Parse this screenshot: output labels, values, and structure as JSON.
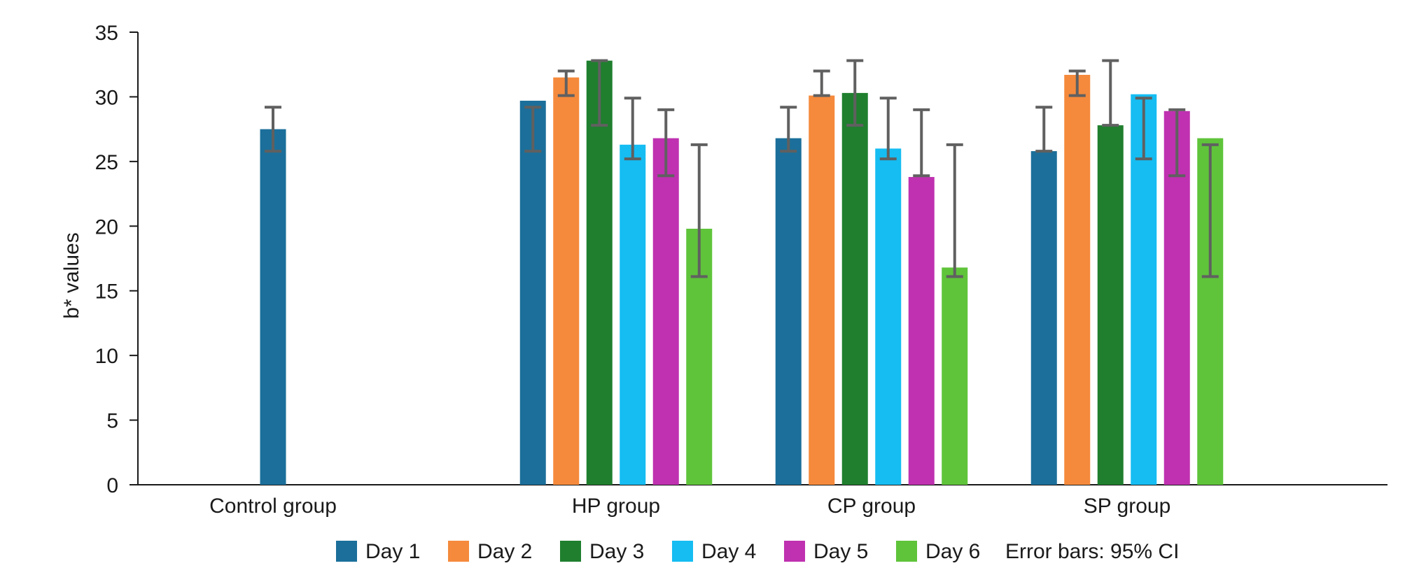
{
  "chart_data": {
    "type": "bar",
    "title": "",
    "xlabel": "",
    "ylabel": "b* values",
    "ylim": [
      0,
      35
    ],
    "yticks": [
      0,
      5,
      10,
      15,
      20,
      25,
      30,
      35
    ],
    "grid": false,
    "legend_position": "bottom",
    "error_bar_note": "Error bars: 95% CI",
    "categories": [
      "Control group",
      "HP group",
      "CP group",
      "SP group"
    ],
    "series": [
      {
        "name": "Day 1",
        "color": "#1b6f9a",
        "values": [
          27.5,
          29.7,
          26.8,
          25.8
        ],
        "ci": [
          [
            25.8,
            29.2
          ],
          [
            25.8,
            29.2
          ],
          [
            25.8,
            29.2
          ],
          [
            25.8,
            29.2
          ]
        ]
      },
      {
        "name": "Day 2",
        "color": "#f58a3c",
        "values": [
          null,
          31.5,
          30.1,
          31.7
        ],
        "ci": [
          null,
          [
            30.1,
            32.0
          ],
          [
            30.1,
            32.0
          ],
          [
            30.1,
            32.0
          ]
        ]
      },
      {
        "name": "Day 3",
        "color": "#1f7f2e",
        "values": [
          null,
          32.8,
          30.3,
          27.8
        ],
        "ci": [
          null,
          [
            27.8,
            32.8
          ],
          [
            27.8,
            32.8
          ],
          [
            27.8,
            32.8
          ]
        ]
      },
      {
        "name": "Day 4",
        "color": "#15bdf2",
        "values": [
          null,
          26.3,
          26.0,
          30.2
        ],
        "ci": [
          null,
          [
            25.2,
            29.9
          ],
          [
            25.2,
            29.9
          ],
          [
            25.2,
            29.9
          ]
        ]
      },
      {
        "name": "Day 5",
        "color": "#bf31b0",
        "values": [
          null,
          26.8,
          23.8,
          28.9
        ],
        "ci": [
          null,
          [
            23.9,
            29.0
          ],
          [
            23.9,
            29.0
          ],
          [
            23.9,
            29.0
          ]
        ]
      },
      {
        "name": "Day 6",
        "color": "#5fc43a",
        "values": [
          null,
          19.8,
          16.8,
          26.8
        ],
        "ci": [
          null,
          [
            16.1,
            26.3
          ],
          [
            16.1,
            26.3
          ],
          [
            16.1,
            26.3
          ]
        ]
      }
    ]
  }
}
